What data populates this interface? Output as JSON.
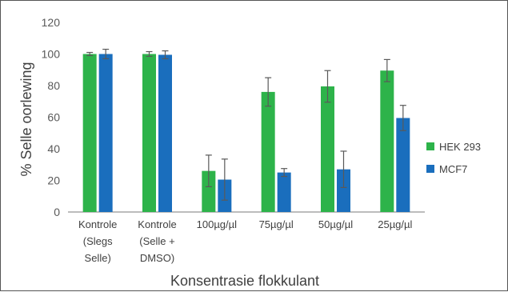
{
  "chart_data": {
    "type": "bar",
    "title": "",
    "xlabel": "Konsentrasie flokkulant",
    "ylabel": "% Selle oorlewing",
    "ylim": [
      0,
      120
    ],
    "yticks": [
      0,
      20,
      40,
      60,
      80,
      100,
      120
    ],
    "grid": false,
    "legend_position": "right",
    "categories": [
      [
        "Kontrole",
        "(Slegs",
        "Selle)"
      ],
      [
        "Kontrole",
        "(Selle +",
        "DMSO)"
      ],
      [
        "100µg/µl"
      ],
      [
        "75µg/µl"
      ],
      [
        "50µg/µl"
      ],
      [
        "25µg/µl"
      ]
    ],
    "series": [
      {
        "name": "HEK 293",
        "color": "#2db34a",
        "values": [
          100,
          100,
          26,
          76,
          79.5,
          89.5
        ],
        "errors": [
          1,
          1.5,
          10,
          9,
          10,
          7
        ]
      },
      {
        "name": "MCF7",
        "color": "#1a6ebd",
        "values": [
          100,
          99.5,
          20.5,
          25,
          27,
          59.5
        ],
        "errors": [
          3,
          2.5,
          13,
          2.5,
          11.5,
          8
        ]
      }
    ]
  }
}
